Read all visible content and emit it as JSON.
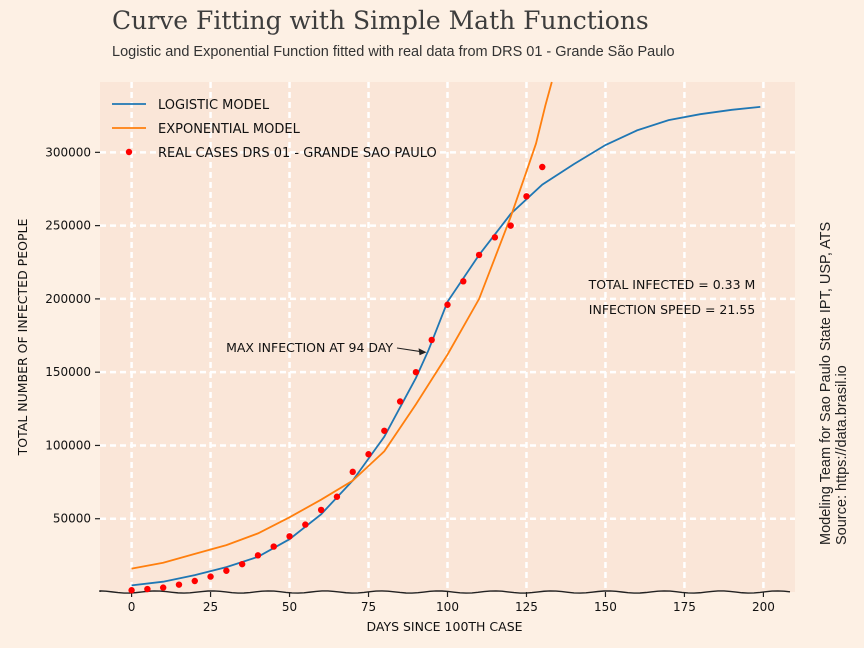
{
  "title": "Curve Fitting with Simple Math Functions",
  "subtitle": "Logistic and Exponential Function fitted with real data from DRS 01 - Grande São Paulo",
  "side_text": {
    "line1": "Modeling Team for Sao Paulo State IPT, USP, ATS",
    "line2": "Source: https://data.brasil.io"
  },
  "colors": {
    "background": "#fdf0e4",
    "plot_area": "#fae6d8",
    "grid": "#ffffff",
    "logistic": "#1f77b4",
    "exponential": "#ff7f0e",
    "real": "#ff0000"
  },
  "chart_data": {
    "type": "line",
    "xlabel": "DAYS SINCE 100TH CASE",
    "ylabel": "TOTAL NUMBER OF INFECTED PEOPLE",
    "xlim": [
      -10,
      210
    ],
    "ylim": [
      0,
      348000
    ],
    "xticks": [
      0,
      25,
      50,
      75,
      100,
      125,
      150,
      175,
      200
    ],
    "yticks": [
      50000,
      100000,
      150000,
      200000,
      250000,
      300000
    ],
    "grid": true,
    "legend_position": "top-left",
    "legend": [
      "LOGISTIC MODEL",
      "EXPONENTIAL MODEL",
      "REAL CASES DRS 01 - GRANDE SAO PAULO"
    ],
    "series": [
      {
        "name": "LOGISTIC MODEL",
        "kind": "line",
        "x": [
          0,
          10,
          20,
          30,
          40,
          50,
          60,
          70,
          80,
          90,
          94,
          100,
          110,
          120,
          130,
          140,
          150,
          160,
          170,
          180,
          190,
          199
        ],
        "y": [
          4500,
          7000,
          11500,
          17000,
          24000,
          36000,
          53000,
          76000,
          106000,
          146000,
          165000,
          198000,
          230000,
          258000,
          278000,
          292000,
          305000,
          315000,
          322000,
          326000,
          329000,
          331000
        ]
      },
      {
        "name": "EXPONENTIAL MODEL",
        "kind": "line",
        "x": [
          0,
          10,
          20,
          30,
          40,
          50,
          60,
          70,
          80,
          90,
          100,
          110,
          115,
          120,
          125,
          128,
          131,
          133
        ],
        "y": [
          16000,
          20000,
          26000,
          32000,
          40000,
          51000,
          63000,
          76000,
          96000,
          128000,
          162000,
          200000,
          228000,
          256000,
          287000,
          306000,
          332000,
          348000
        ]
      },
      {
        "name": "REAL CASES DRS 01 - GRANDE SAO PAULO",
        "kind": "scatter",
        "x": [
          0,
          5,
          10,
          15,
          20,
          25,
          30,
          35,
          40,
          45,
          50,
          55,
          60,
          65,
          70,
          75,
          80,
          85,
          90,
          95,
          100,
          105,
          110,
          115,
          120,
          125,
          130
        ],
        "y": [
          1200,
          2000,
          3000,
          5000,
          7500,
          10500,
          14500,
          19000,
          25000,
          31000,
          38000,
          46000,
          56000,
          65000,
          82000,
          94000,
          110000,
          130000,
          150000,
          172000,
          196000,
          212000,
          230000,
          242000,
          250000,
          270000,
          290000
        ]
      }
    ],
    "annotations": [
      {
        "text": "MAX INFECTION AT 94 DAY",
        "arrow_to": [
          94,
          165000
        ]
      },
      {
        "text": "TOTAL INFECTED = 0.33 M"
      },
      {
        "text": "INFECTION SPEED = 21.55"
      }
    ]
  }
}
